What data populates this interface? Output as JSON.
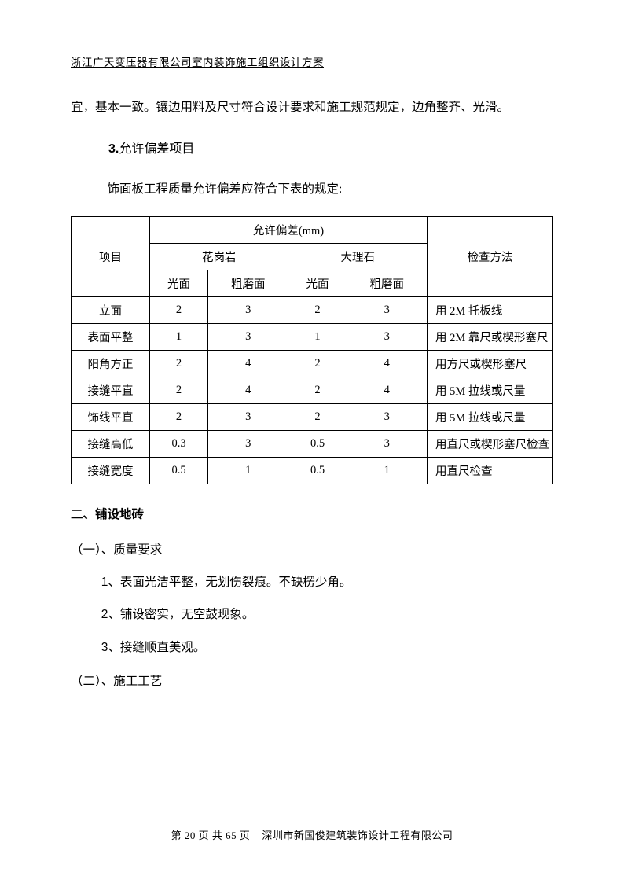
{
  "header": "浙江广天变压器有限公司室内装饰施工组织设计方案",
  "para1": "宜，基本一致。镶边用料及尺寸符合设计要求和施工规范规定，边角整齐、光滑。",
  "section3": {
    "num": "3.",
    "title": "允许偏差项目"
  },
  "tableIntro": "饰面板工程质量允许偏差应符合下表的规定:",
  "table": {
    "header": {
      "item": "项目",
      "tolerance": "允许偏差(mm)",
      "granite": "花岗岩",
      "marble": "大理石",
      "method": "检查方法",
      "smooth": "光面",
      "rough": "粗磨面"
    },
    "rows": [
      {
        "item": "立面",
        "v1": "2",
        "v2": "3",
        "v3": "2",
        "v4": "3",
        "method": "用 2M 托板线"
      },
      {
        "item": "表面平整",
        "v1": "1",
        "v2": "3",
        "v3": "1",
        "v4": "3",
        "method": "用 2M 靠尺或楔形塞尺"
      },
      {
        "item": "阳角方正",
        "v1": "2",
        "v2": "4",
        "v3": "2",
        "v4": "4",
        "method": "用方尺或楔形塞尺"
      },
      {
        "item": "接缝平直",
        "v1": "2",
        "v2": "4",
        "v3": "2",
        "v4": "4",
        "method": "用 5M 拉线或尺量"
      },
      {
        "item": "饰线平直",
        "v1": "2",
        "v2": "3",
        "v3": "2",
        "v4": "3",
        "method": "用 5M 拉线或尺量"
      },
      {
        "item": "接缝高低",
        "v1": "0.3",
        "v2": "3",
        "v3": "0.5",
        "v4": "3",
        "method": "用直尺或楔形塞尺检查"
      },
      {
        "item": "接缝宽度",
        "v1": "0.5",
        "v2": "1",
        "v3": "0.5",
        "v4": "1",
        "method": "用直尺检查"
      }
    ]
  },
  "heading2": "二、铺设地砖",
  "sub1": "（一）、质量要求",
  "items1": [
    {
      "num": "1",
      "text": "、表面光洁平整，无划伤裂痕。不缺楞少角。"
    },
    {
      "num": "2",
      "text": "、铺设密实，无空鼓现象。"
    },
    {
      "num": "3",
      "text": "、接缝顺直美观。"
    }
  ],
  "sub2": "（二）、施工工艺",
  "footer": {
    "page": "第 20 页 共 65 页",
    "company": "深圳市新国俊建筑装饰设计工程有限公司"
  }
}
